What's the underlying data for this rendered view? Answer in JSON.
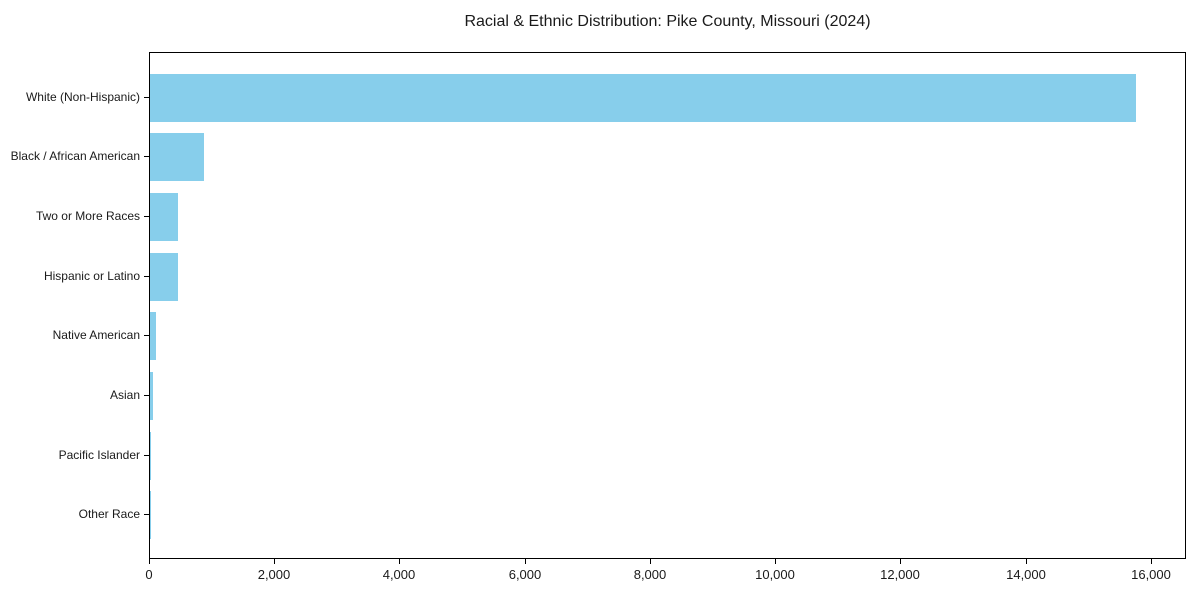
{
  "chart_data": {
    "type": "bar",
    "orientation": "horizontal",
    "title": "Racial & Ethnic Distribution: Pike County, Missouri (2024)",
    "categories": [
      "White (Non-Hispanic)",
      "Black / African American",
      "Two or More Races",
      "Hispanic or Latino",
      "Native American",
      "Asian",
      "Pacific Islander",
      "Other Race"
    ],
    "values": [
      15740,
      860,
      455,
      440,
      90,
      55,
      20,
      5
    ],
    "xlabel": "",
    "ylabel": "",
    "xlim": [
      0,
      16527
    ],
    "x_ticks": [
      0,
      2000,
      4000,
      6000,
      8000,
      10000,
      12000,
      14000,
      16000
    ],
    "x_tick_labels": [
      "0",
      "2,000",
      "4,000",
      "6,000",
      "8,000",
      "10,000",
      "12,000",
      "14,000",
      "16,000"
    ],
    "bar_color": "#87CEEB",
    "spine_color": "#000000",
    "text_color": "#1a1a1a",
    "background_color": "#ffffff",
    "legend": "none",
    "grid": false
  }
}
